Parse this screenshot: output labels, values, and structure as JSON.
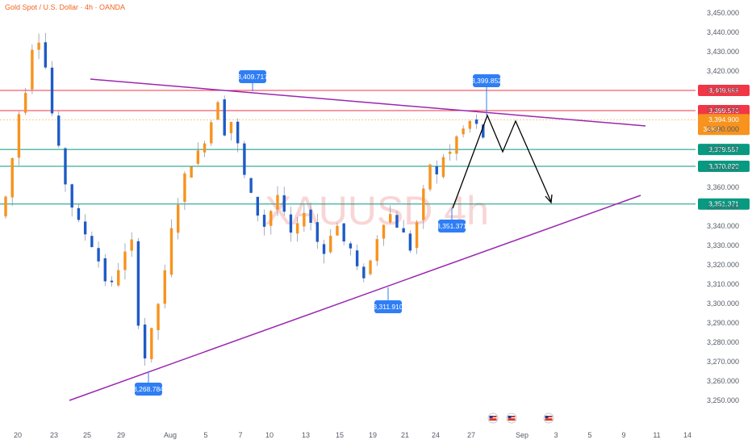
{
  "title": "Gold Spot / U.S. Dollar · 4h · OANDA",
  "watermark": "XAUUSD 4h",
  "colors": {
    "up": "#f7931e",
    "down": "#1e5bc6",
    "wick": "#7f8aa3",
    "trendline": "#9b27b0",
    "red_level": "#f23645",
    "green_level": "#089981",
    "callout": "#2f7ef5",
    "current_price": "#f7931e",
    "projection": "#000000"
  },
  "chart_data": {
    "type": "candlestick",
    "title": "Gold Spot / U.S. Dollar · 4h · OANDA",
    "y_ticks": [
      3450,
      3440,
      3430,
      3420,
      3410,
      3400,
      3390,
      3380,
      3370,
      3360,
      3350,
      3340,
      3330,
      3320,
      3310,
      3300,
      3290,
      3280,
      3270,
      3260,
      3250
    ],
    "y_tick_labels": [
      "3,450.000",
      "3,440.000",
      "3,430.000",
      "3,420.000",
      "3,410.000",
      "3,400.000",
      "3,390.000",
      "3,380.000",
      "3,370.000",
      "3,360.000",
      "3,350.000",
      "3,340.000",
      "3,330.000",
      "3,320.000",
      "3,310.000",
      "3,300.000",
      "3,290.000",
      "3,280.000",
      "3,270.000",
      "3,260.000",
      "3,250.000"
    ],
    "x_labels": [
      "20",
      "23",
      "25",
      "29",
      "Aug",
      "5",
      "7",
      "10",
      "13",
      "15",
      "19",
      "21",
      "24",
      "27",
      "Sep",
      "3",
      "5",
      "9",
      "11",
      "14"
    ],
    "path": [
      3345,
      3355,
      3375,
      3398,
      3410,
      3432,
      3436,
      3422,
      3398,
      3380,
      3362,
      3350,
      3342,
      3336,
      3330,
      3322,
      3312,
      3310,
      3318,
      3326,
      3332,
      3290,
      3272,
      3286,
      3300,
      3316,
      3338,
      3352,
      3366,
      3372,
      3378,
      3384,
      3394,
      3405,
      3388,
      3394,
      3382,
      3366,
      3356,
      3346,
      3340,
      3348,
      3356,
      3346,
      3336,
      3340,
      3348,
      3342,
      3332,
      3326,
      3336,
      3340,
      3332,
      3328,
      3318,
      3314,
      3322,
      3334,
      3342,
      3346,
      3340,
      3336,
      3328,
      3342,
      3358,
      3372,
      3366,
      3376,
      3378,
      3386,
      3390,
      3394,
      3392,
      3386
    ],
    "price_levels": [
      {
        "label": "3,409.999",
        "value": 3409.999,
        "kind": "red"
      },
      {
        "label": "3,399.570",
        "value": 3399.57,
        "kind": "red"
      },
      {
        "label": "3,379.557",
        "value": 3379.557,
        "kind": "green"
      },
      {
        "label": "3,370.820",
        "value": 3370.82,
        "kind": "green"
      },
      {
        "label": "3,351.371",
        "value": 3351.371,
        "kind": "green"
      }
    ],
    "current_price": {
      "label": "3,394.900",
      "countdown": "34:01",
      "value": 3394.9
    },
    "callouts": [
      {
        "label": "3,409.717",
        "value": 3409.717,
        "placement": "above",
        "bar": 33
      },
      {
        "label": "3,399.852",
        "value": 3399.852,
        "placement": "above",
        "bar": 69
      },
      {
        "label": "3,351.371",
        "value": 3351.371,
        "placement": "below",
        "bar": 62
      },
      {
        "label": "3,311.910",
        "value": 3311.91,
        "placement": "below",
        "bar": 54
      },
      {
        "label": "3,268.784",
        "value": 3268.784,
        "placement": "below",
        "bar": 22
      }
    ],
    "trendlines": [
      {
        "name": "upper",
        "from": {
          "bar": 13,
          "price": 3416
        },
        "to": {
          "bar": 96,
          "price": 3388
        }
      },
      {
        "name": "lower",
        "from": {
          "bar": 10,
          "price": 3254
        },
        "to": {
          "bar": 96,
          "price": 3357
        }
      }
    ],
    "projection": [
      {
        "bar": 62,
        "price": 3351
      },
      {
        "bar": 69,
        "price": 3399.5
      },
      {
        "bar": 71.5,
        "price": 3381
      },
      {
        "bar": 74.5,
        "price": 3396
      },
      {
        "bar": 81,
        "price": 3353
      }
    ]
  }
}
